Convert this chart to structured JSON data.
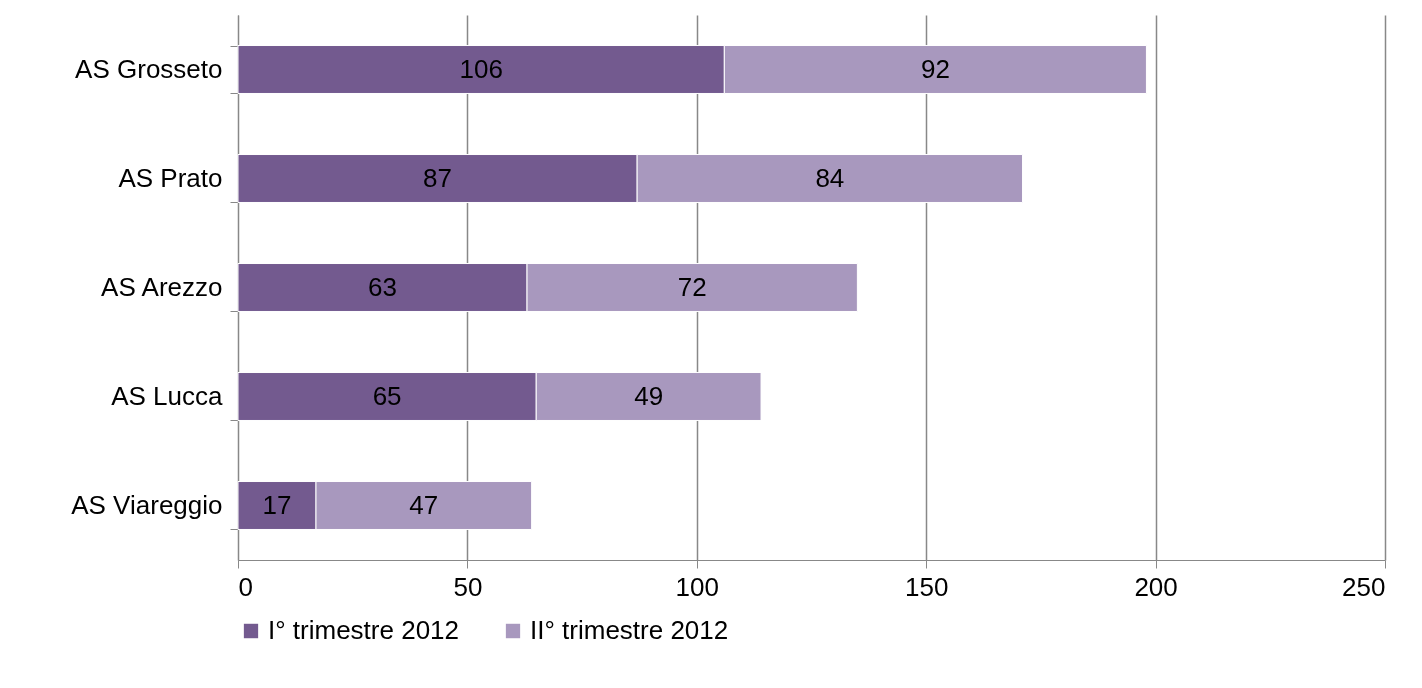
{
  "chart_data": {
    "type": "bar",
    "orientation": "horizontal",
    "stacked": true,
    "categories": [
      "AS Grosseto",
      "AS Prato",
      "AS Arezzo",
      "AS Lucca",
      "AS Viareggio"
    ],
    "series": [
      {
        "name": "I° trimestre 2012",
        "color": "#735a8f",
        "values": [
          106,
          87,
          63,
          65,
          17
        ]
      },
      {
        "name": "II° trimestre 2012",
        "color": "#a898be",
        "values": [
          92,
          84,
          72,
          49,
          47
        ]
      }
    ],
    "xlim": [
      0,
      250
    ],
    "xticks": [
      0,
      50,
      100,
      150,
      200,
      250
    ],
    "grid": "x",
    "legend": "bottom",
    "data_labels": true
  }
}
